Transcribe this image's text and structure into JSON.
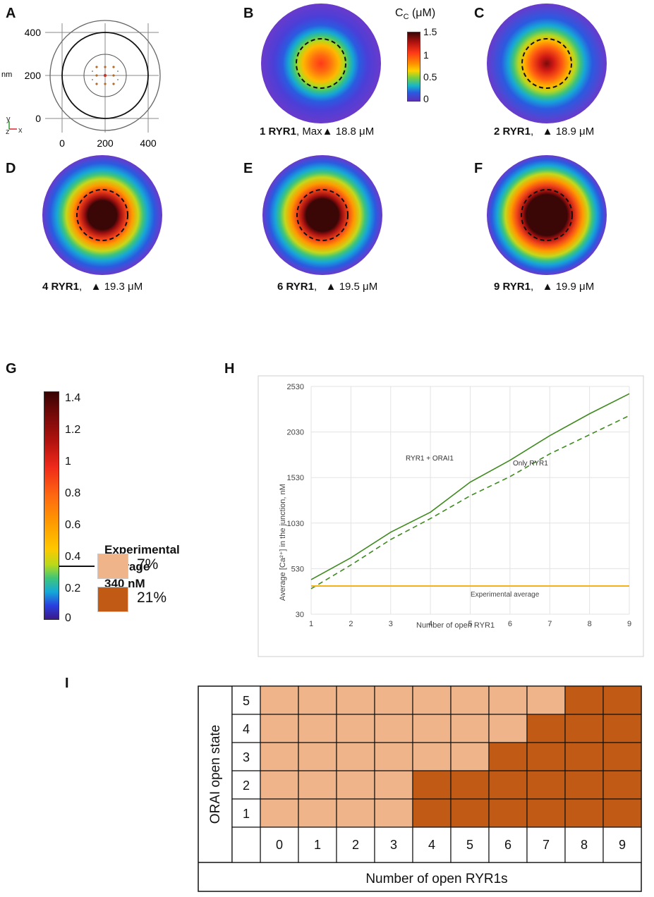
{
  "panels": {
    "A": "A",
    "B": "B",
    "C": "C",
    "D": "D",
    "E": "E",
    "F": "F",
    "G": "G",
    "H": "H",
    "I": "I"
  },
  "panel_a": {
    "y_ticks": [
      "400",
      "200",
      "0"
    ],
    "x_ticks": [
      "0",
      "200",
      "400"
    ],
    "unit": "nm",
    "axis_y": "y",
    "axis_z": "z",
    "axis_x": "x"
  },
  "colorbar_b": {
    "title": "C",
    "title_sub": "C",
    "title_unit": "(μM)",
    "ticks": [
      "1.5",
      "1",
      "0.5",
      "0"
    ]
  },
  "heatmaps": [
    {
      "id": "B",
      "count": "1 RYR1",
      "sep": ",",
      "prefix": "Max",
      "value": "18.8 μM"
    },
    {
      "id": "C",
      "count": "2 RYR1",
      "sep": ",",
      "prefix": "",
      "value": "18.9 μM"
    },
    {
      "id": "D",
      "count": "4 RYR1",
      "sep": ",",
      "prefix": "",
      "value": "19.3 μM"
    },
    {
      "id": "E",
      "count": "6 RYR1",
      "sep": ",",
      "prefix": "",
      "value": "19.5 μM"
    },
    {
      "id": "F",
      "count": "9 RYR1",
      "sep": ",",
      "prefix": "",
      "value": "19.9 μM"
    }
  ],
  "colorbar_g": {
    "ticks": [
      "1.4",
      "1.2",
      "1",
      "0.8",
      "0.6",
      "0.4",
      "0.2",
      "0"
    ],
    "exp_line1": "Experimental",
    "exp_line2": "average",
    "exp_line3": "340 nM"
  },
  "chart_data": [
    {
      "type": "line",
      "panel": "H",
      "xlabel": "Number of open RYR1",
      "ylabel": "Average [Ca²⁺] in the junction, nM",
      "x": [
        1,
        2,
        3,
        4,
        5,
        6,
        7,
        8,
        9
      ],
      "xlim": [
        1,
        9
      ],
      "ylim": [
        30,
        2530
      ],
      "y_ticks": [
        30,
        530,
        1030,
        1530,
        2030,
        2530
      ],
      "x_ticks": [
        1,
        2,
        3,
        4,
        5,
        6,
        7,
        8,
        9
      ],
      "series": [
        {
          "name": "RYR1 + ORAI1",
          "style": "solid",
          "color": "#3f8a1f",
          "values": [
            410,
            650,
            930,
            1150,
            1480,
            1720,
            1990,
            2230,
            2450
          ]
        },
        {
          "name": "Only RYR1",
          "style": "dashed",
          "color": "#3f8a1f",
          "values": [
            310,
            570,
            850,
            1080,
            1330,
            1540,
            1790,
            2000,
            2210
          ]
        },
        {
          "name": "Experimental average",
          "style": "solid",
          "color": "#f5b118",
          "values": [
            340,
            340,
            340,
            340,
            340,
            340,
            340,
            340,
            340
          ]
        }
      ]
    },
    {
      "type": "heatmap",
      "panel": "I",
      "xlabel": "Number of open RYR1s",
      "ylabel": "ORAI open state",
      "x": [
        "0",
        "1",
        "2",
        "3",
        "4",
        "5",
        "6",
        "7",
        "8",
        "9"
      ],
      "y": [
        "5",
        "4",
        "3",
        "2",
        "1"
      ],
      "legend": [
        {
          "label": "7%",
          "color": "#f0b48a"
        },
        {
          "label": "21%",
          "color": "#c05a15"
        }
      ],
      "threshold_ryr1_by_orai": {
        "5": 8,
        "4": 7,
        "3": 6,
        "2": 4,
        "1": 4
      }
    }
  ],
  "colors": {
    "light": "#f0b48a",
    "dark": "#c05a15",
    "green": "#3f8a1f",
    "orange": "#f5b118"
  }
}
